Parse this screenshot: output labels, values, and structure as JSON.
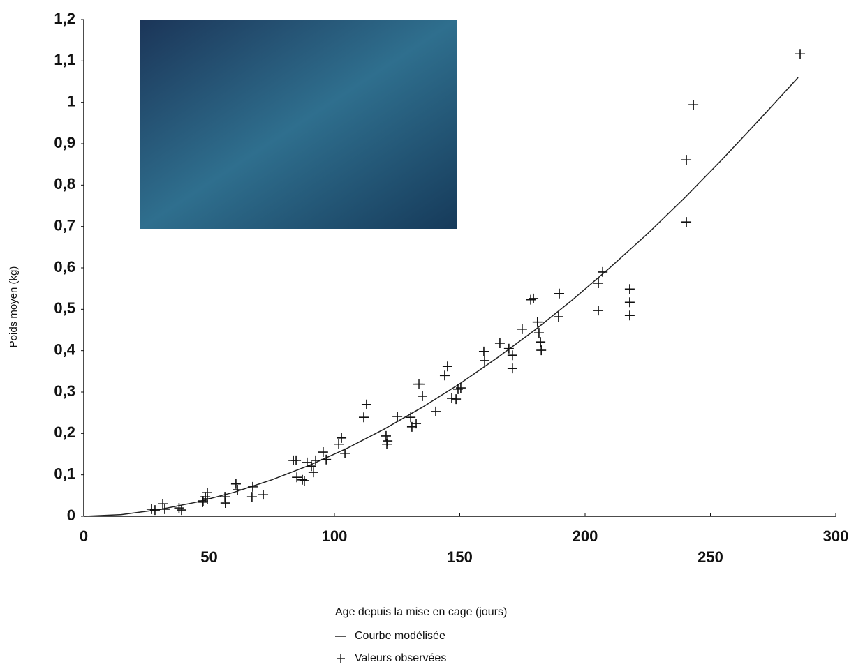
{
  "chart_data": {
    "type": "scatter",
    "xlabel": "Age depuis la mise en cage (jours)",
    "ylabel": "Poids moyen (kg)",
    "xlim": [
      0,
      300
    ],
    "xticks": [
      0,
      50,
      100,
      150,
      200,
      250,
      300
    ],
    "ylim": [
      0,
      1.2
    ],
    "yticks": [
      0,
      {
        "value": 0.1,
        "label": "0,1"
      },
      {
        "value": 0.2,
        "label": "0,2"
      },
      {
        "value": 0.3,
        "label": "0,3"
      },
      {
        "value": 0.4,
        "label": "0,4"
      },
      {
        "value": 0.5,
        "label": "0,5"
      },
      {
        "value": 0.6,
        "label": "0,6"
      },
      {
        "value": 0.7,
        "label": "0,7"
      },
      {
        "value": 0.8,
        "label": "0,8"
      },
      {
        "value": 0.9,
        "label": "0,9"
      },
      1,
      {
        "value": 1.1,
        "label": "1,1"
      },
      {
        "value": 1.2,
        "label": "1,2"
      }
    ],
    "series": [
      {
        "name": "Courbe modélisée",
        "type": "line",
        "color": "#222222",
        "x": [
          0,
          15,
          30,
          45,
          60,
          75,
          90,
          105,
          120,
          135,
          150,
          165,
          180,
          195,
          210,
          225,
          240,
          255,
          270,
          285
        ],
        "values": [
          0,
          0.004,
          0.016,
          0.034,
          0.058,
          0.088,
          0.123,
          0.164,
          0.211,
          0.263,
          0.32,
          0.383,
          0.45,
          0.523,
          0.601,
          0.683,
          0.771,
          0.864,
          0.961,
          1.06
        ]
      },
      {
        "name": "Valeurs observées",
        "type": "scatter",
        "color": "#111111",
        "x": [
          27,
          28.4,
          31.5,
          32.3,
          38,
          39,
          47.6,
          48.5,
          49.3,
          49.3,
          47.4,
          56.3,
          56.5,
          60.7,
          61.3,
          67.1,
          67.4,
          71.6,
          83.6,
          84.7,
          85,
          87.2,
          88,
          89.1,
          90.8,
          91.6,
          92.5,
          95.5,
          96.7,
          101.7,
          102.8,
          104.2,
          111.7,
          112.8,
          120.6,
          120.9,
          121.2,
          125.1,
          130.4,
          130.9,
          132.6,
          133.4,
          134,
          135.1,
          140.4,
          144,
          145.1,
          146.8,
          148.5,
          149.3,
          150.4,
          159.6,
          159.9,
          166,
          169.6,
          171,
          171,
          174.9,
          178.3,
          179.4,
          181,
          181.6,
          182.2,
          182.5,
          189.7,
          189.4,
          205.3,
          205.3,
          207,
          217.8,
          217.8,
          217.8,
          240.4,
          240.4,
          243.2,
          285.8
        ],
        "values": [
          0.017,
          0.015,
          0.03,
          0.017,
          0.02,
          0.015,
          0.037,
          0.047,
          0.042,
          0.057,
          0.034,
          0.047,
          0.032,
          0.078,
          0.064,
          0.047,
          0.071,
          0.052,
          0.135,
          0.135,
          0.094,
          0.088,
          0.086,
          0.13,
          0.121,
          0.106,
          0.135,
          0.155,
          0.137,
          0.174,
          0.189,
          0.152,
          0.239,
          0.27,
          0.194,
          0.174,
          0.182,
          0.241,
          0.239,
          0.216,
          0.224,
          0.319,
          0.319,
          0.29,
          0.253,
          0.34,
          0.362,
          0.285,
          0.283,
          0.307,
          0.31,
          0.398,
          0.376,
          0.418,
          0.405,
          0.389,
          0.357,
          0.452,
          0.523,
          0.526,
          0.469,
          0.443,
          0.421,
          0.401,
          0.538,
          0.482,
          0.563,
          0.497,
          0.59,
          0.549,
          0.517,
          0.485,
          0.861,
          0.711,
          0.994,
          1.117
        ]
      }
    ]
  }
}
